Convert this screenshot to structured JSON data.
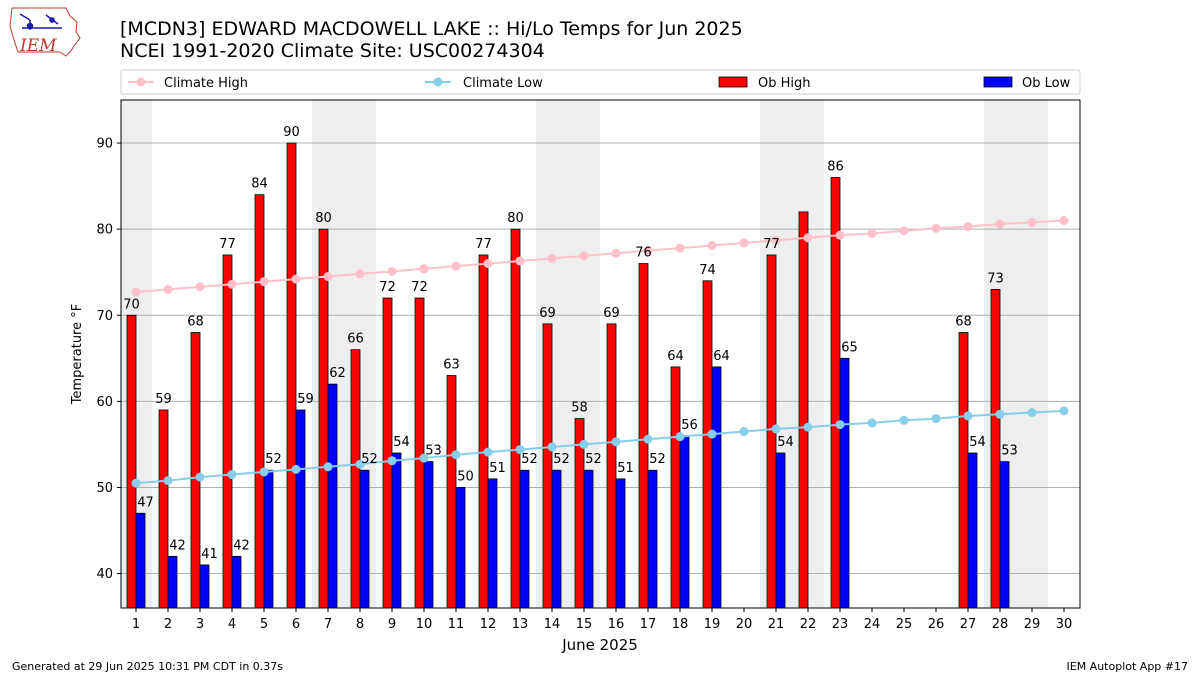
{
  "header": {
    "title_line1": "[MCDN3] EDWARD MACDOWELL LAKE :: Hi/Lo Temps for Jun 2025",
    "title_line2": "NCEI 1991-2020 Climate Site: USC00274304",
    "logo_text": "IEM"
  },
  "footer": {
    "generated": "Generated at 29 Jun 2025 10:31 PM CDT in 0.37s",
    "app": "IEM Autoplot App #17"
  },
  "colors": {
    "ob_high": "#ff0000",
    "ob_low": "#0000ff",
    "climate_high": "#ffc0cb",
    "climate_low": "#87ceeb",
    "weekend_band": "#eeeeee",
    "grid": "#b0b0b0"
  },
  "chart_data": {
    "type": "bar",
    "title": "[MCDN3] EDWARD MACDOWELL LAKE :: Hi/Lo Temps for Jun 2025",
    "subtitle": "NCEI 1991-2020 Climate Site: USC00274304",
    "xlabel": "June 2025",
    "ylabel": "Temperature °F",
    "ylim": [
      36,
      95
    ],
    "yticks": [
      40,
      50,
      60,
      70,
      80,
      90
    ],
    "grid": true,
    "legend_position": "top",
    "legend": [
      "Climate High",
      "Climate Low",
      "Ob High",
      "Ob Low"
    ],
    "categories": [
      "1",
      "2",
      "3",
      "4",
      "5",
      "6",
      "7",
      "8",
      "9",
      "10",
      "11",
      "12",
      "13",
      "14",
      "15",
      "16",
      "17",
      "18",
      "19",
      "20",
      "21",
      "22",
      "23",
      "24",
      "25",
      "26",
      "27",
      "28",
      "29",
      "30"
    ],
    "shaded_days": [
      1,
      7,
      8,
      14,
      15,
      21,
      22,
      28,
      29
    ],
    "series": [
      {
        "name": "Ob High",
        "kind": "bar",
        "values": [
          70,
          59,
          68,
          77,
          84,
          90,
          80,
          66,
          72,
          72,
          63,
          77,
          80,
          69,
          58,
          69,
          76,
          64,
          74,
          null,
          77,
          82,
          86,
          null,
          null,
          null,
          68,
          73,
          null,
          null
        ],
        "labels": [
          "70",
          "59",
          "68",
          "77",
          "84",
          "90",
          "80",
          "66",
          "72",
          "72",
          "63",
          "77",
          "80",
          "69",
          "58",
          "69",
          "76",
          "64",
          "74",
          "",
          "77",
          "",
          "86",
          "",
          "",
          "",
          "68",
          "73",
          "",
          ""
        ]
      },
      {
        "name": "Ob Low",
        "kind": "bar",
        "values": [
          47,
          42,
          41,
          42,
          52,
          59,
          62,
          52,
          54,
          53,
          50,
          51,
          52,
          52,
          52,
          51,
          52,
          56,
          64,
          null,
          54,
          null,
          65,
          null,
          null,
          null,
          54,
          53,
          null,
          null
        ],
        "labels": [
          "47",
          "42",
          "41",
          "42",
          "52",
          "59",
          "62",
          "52",
          "54",
          "53",
          "50",
          "51",
          "52",
          "52",
          "52",
          "51",
          "52",
          "56",
          "64",
          "",
          "54",
          "",
          "65",
          "",
          "",
          "",
          "54",
          "53",
          "",
          ""
        ]
      },
      {
        "name": "Climate High",
        "kind": "line",
        "values": [
          72.7,
          73.0,
          73.3,
          73.6,
          73.9,
          74.2,
          74.5,
          74.8,
          75.1,
          75.4,
          75.7,
          76.0,
          76.3,
          76.6,
          76.9,
          77.2,
          77.5,
          77.8,
          78.1,
          78.4,
          78.7,
          79.0,
          79.3,
          79.5,
          79.8,
          80.1,
          80.3,
          80.6,
          80.8,
          81.0
        ]
      },
      {
        "name": "Climate Low",
        "kind": "line",
        "values": [
          50.5,
          50.8,
          51.2,
          51.5,
          51.8,
          52.1,
          52.4,
          52.7,
          53.1,
          53.4,
          53.8,
          54.1,
          54.4,
          54.7,
          55.0,
          55.3,
          55.6,
          55.9,
          56.2,
          56.5,
          56.8,
          57.0,
          57.3,
          57.5,
          57.8,
          58.0,
          58.3,
          58.5,
          58.7,
          58.9
        ]
      }
    ]
  }
}
